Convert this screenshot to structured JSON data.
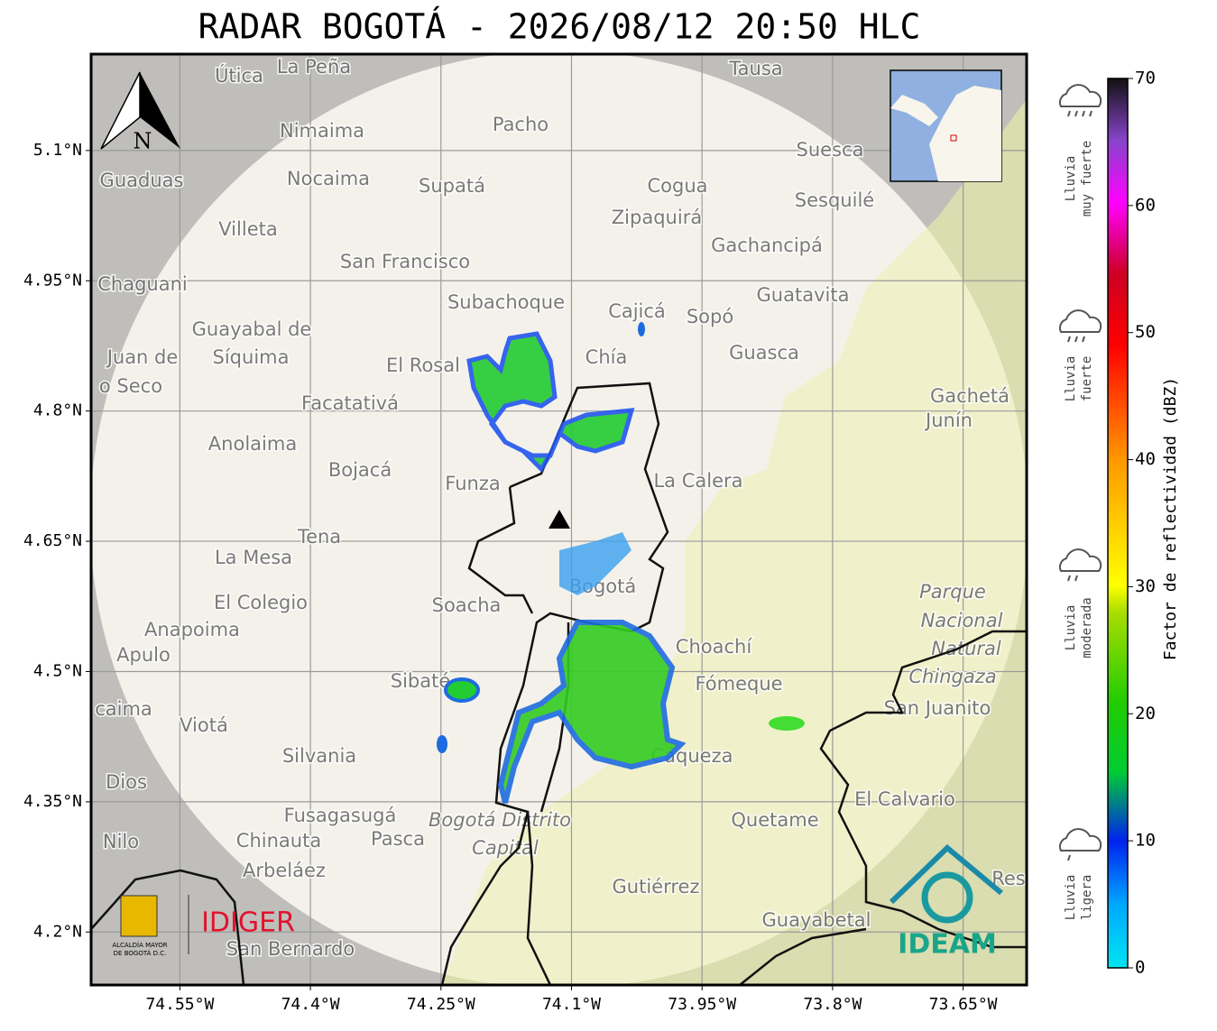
{
  "title": "RADAR BOGOTÁ - 2026/08/12 20:50 HLC",
  "map": {
    "xlim": [
      -74.652,
      -73.577
    ],
    "ylim": [
      4.139,
      5.211
    ],
    "xticks": [
      {
        "value": -74.55,
        "label": "74.55°W"
      },
      {
        "value": -74.4,
        "label": "74.4°W"
      },
      {
        "value": -74.25,
        "label": "74.25°W"
      },
      {
        "value": -74.1,
        "label": "74.1°W"
      },
      {
        "value": -73.95,
        "label": "73.95°W"
      },
      {
        "value": -73.8,
        "label": "73.8°W"
      },
      {
        "value": -73.65,
        "label": "73.65°W"
      }
    ],
    "yticks": [
      {
        "value": 5.1,
        "label": "5.1°N"
      },
      {
        "value": 4.95,
        "label": "4.95°N"
      },
      {
        "value": 4.8,
        "label": "4.8°N"
      },
      {
        "value": 4.65,
        "label": "4.65°N"
      },
      {
        "value": 4.5,
        "label": "4.5°N"
      },
      {
        "value": 4.35,
        "label": "4.35°N"
      },
      {
        "value": 4.2,
        "label": "4.2°N"
      }
    ],
    "places": [
      "Útica",
      "La Peña",
      "Tausa",
      "Pacho",
      "Nimaima",
      "Guaduas",
      "Nocaima",
      "Supatá",
      "Cogua",
      "Suesca",
      "Sesquilé",
      "Villeta",
      "Zipaquirá",
      "Gachancipá",
      "San Francisco",
      "Chaguani",
      "Subachoque",
      "Cajicá",
      "Sopó",
      "Guatavita",
      "Guayabal de",
      "Síquima",
      "Juan de",
      "o Seco",
      "El Rosal",
      "Chía",
      "Guasca",
      "Facatativá",
      "Gachetá",
      "Junín",
      "Anolaima",
      "Bojacá",
      "Funza",
      "La Calera",
      "Tena",
      "La Mesa",
      "Bogotá",
      "Soacha",
      "El Colegio",
      "Parque",
      "Nacional",
      "Natural",
      "Chingaza",
      "Anapoima",
      "Apulo",
      "Choachí",
      "Sibaté",
      "Fómeque",
      "San Juanito",
      "caima",
      "Viotá",
      "Silvania",
      "Cáqueza",
      "Dios",
      "El Calvario",
      "Fusagasugá",
      "Bogotá Distrito",
      "Capital",
      "Quetame",
      "Nilo",
      "Chinauta",
      "Pasca",
      "Arbeláez",
      "Gutiérrez",
      "Guayabetal",
      "San Bernardo",
      "Res"
    ]
  },
  "compass": "N",
  "colorbar": {
    "label": "Factor de reflectividad (dBZ)",
    "lim": [
      0,
      70
    ],
    "ticks": [
      0,
      10,
      20,
      30,
      40,
      50,
      60,
      70
    ]
  },
  "rain_categories": [
    [
      "Lluvia",
      "muy fuerte"
    ],
    [
      "Lluvia",
      "fuerte"
    ],
    [
      "Lluvia",
      "moderada"
    ],
    [
      "Lluvia",
      "ligera"
    ]
  ],
  "logos": {
    "alcaldia": [
      "ALCALDÍA MAYOR",
      "DE BOGOTÁ D.C."
    ],
    "idiger": "IDIGER",
    "ideam": "IDEAM"
  }
}
